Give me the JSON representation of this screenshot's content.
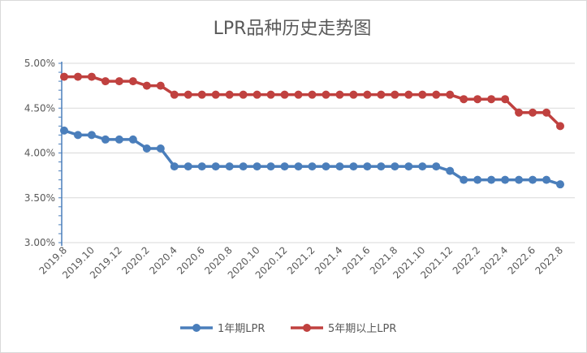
{
  "chart_data": {
    "type": "line",
    "title": "LPR品种历史走势图",
    "xlabel": "",
    "ylabel": "",
    "ylim": [
      3.0,
      5.0
    ],
    "yticks": [
      "3.00%",
      "3.50%",
      "4.00%",
      "4.50%",
      "5.00%"
    ],
    "grid": true,
    "legend": "bottom",
    "x": [
      "2019.8",
      "2019.9",
      "2019.10",
      "2019.11",
      "2019.12",
      "2020.1",
      "2020.2",
      "2020.3",
      "2020.4",
      "2020.5",
      "2020.6",
      "2020.7",
      "2020.8",
      "2020.9",
      "2020.10",
      "2020.11",
      "2020.12",
      "2021.1",
      "2021.2",
      "2021.3",
      "2021.4",
      "2021.5",
      "2021.6",
      "2021.7",
      "2021.8",
      "2021.9",
      "2021.10",
      "2021.11",
      "2021.12",
      "2022.1",
      "2022.2",
      "2022.3",
      "2022.4",
      "2022.5",
      "2022.6",
      "2022.7",
      "2022.8"
    ],
    "xtick_labels": [
      "2019.8",
      "2019.10",
      "2019.12",
      "2020.2",
      "2020.4",
      "2020.6",
      "2020.8",
      "2020.10",
      "2020.12",
      "2021.2",
      "2021.4",
      "2021.6",
      "2021.8",
      "2021.10",
      "2021.12",
      "2022.2",
      "2022.4",
      "2022.6",
      "2022.8"
    ],
    "series": [
      {
        "name": "1年期LPR",
        "color": "#4a7ebb",
        "values": [
          4.25,
          4.2,
          4.2,
          4.15,
          4.15,
          4.15,
          4.05,
          4.05,
          3.85,
          3.85,
          3.85,
          3.85,
          3.85,
          3.85,
          3.85,
          3.85,
          3.85,
          3.85,
          3.85,
          3.85,
          3.85,
          3.85,
          3.85,
          3.85,
          3.85,
          3.85,
          3.85,
          3.85,
          3.8,
          3.7,
          3.7,
          3.7,
          3.7,
          3.7,
          3.7,
          3.7,
          3.65
        ]
      },
      {
        "name": "5年期以上LPR",
        "color": "#c0413f",
        "values": [
          4.85,
          4.85,
          4.85,
          4.8,
          4.8,
          4.8,
          4.75,
          4.75,
          4.65,
          4.65,
          4.65,
          4.65,
          4.65,
          4.65,
          4.65,
          4.65,
          4.65,
          4.65,
          4.65,
          4.65,
          4.65,
          4.65,
          4.65,
          4.65,
          4.65,
          4.65,
          4.65,
          4.65,
          4.65,
          4.6,
          4.6,
          4.6,
          4.6,
          4.45,
          4.45,
          4.45,
          4.3
        ]
      }
    ]
  }
}
